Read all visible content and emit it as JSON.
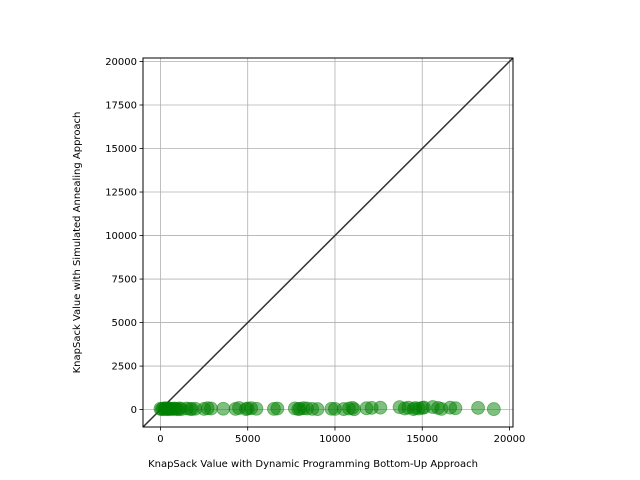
{
  "chart_data": {
    "type": "scatter",
    "title": "",
    "xlabel": "KnapSack Value with Dynamic Programming Bottom-Up Approach",
    "ylabel": "KnapSack Value with Simulated Annealing Approach",
    "xlim": [
      -1000,
      20200
    ],
    "ylim": [
      -1000,
      20200
    ],
    "xticks": [
      0,
      5000,
      10000,
      15000,
      20000
    ],
    "yticks": [
      0,
      2500,
      5000,
      7500,
      10000,
      12500,
      15000,
      17500,
      20000
    ],
    "grid": true,
    "reference_line": {
      "from": [
        -1000,
        -1000
      ],
      "to": [
        20200,
        20200
      ],
      "color": "#333333"
    },
    "point_color": "#008000",
    "point_opacity": 0.5,
    "series": [
      {
        "x": [
          0,
          80,
          150,
          250,
          300,
          400,
          450,
          500,
          600,
          700,
          800,
          900,
          1000,
          1100,
          1200,
          1500,
          1700,
          1800,
          2000,
          2500,
          2700,
          2900,
          3600,
          4300,
          4500,
          4900,
          5000,
          5200,
          5500,
          6500,
          6700,
          7700,
          7900,
          8000,
          8200,
          8400,
          8700,
          9000,
          9800,
          10000,
          10500,
          10800,
          11000,
          11100,
          11800,
          12100,
          12600,
          13700,
          14000,
          14200,
          14500,
          14600,
          14800,
          15000,
          15100,
          15600,
          15900,
          16100,
          16600,
          16900,
          18200,
          19100
        ],
        "y": [
          50,
          20,
          60,
          30,
          80,
          40,
          20,
          70,
          50,
          30,
          60,
          40,
          20,
          70,
          30,
          60,
          40,
          30,
          50,
          40,
          80,
          60,
          50,
          40,
          90,
          30,
          60,
          80,
          50,
          40,
          60,
          70,
          30,
          50,
          80,
          60,
          40,
          30,
          50,
          40,
          30,
          60,
          100,
          20,
          80,
          100,
          110,
          140,
          60,
          110,
          30,
          90,
          60,
          100,
          120,
          150,
          100,
          40,
          110,
          80,
          100,
          30
        ]
      }
    ]
  }
}
